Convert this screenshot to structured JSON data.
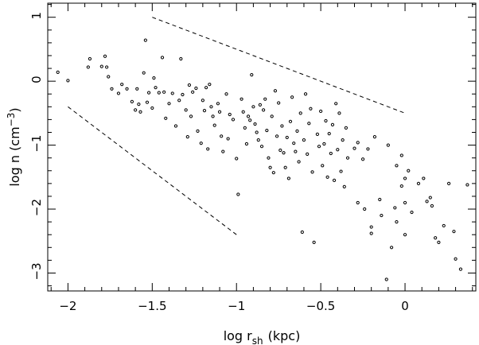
{
  "chart_data": {
    "type": "scatter",
    "xlabel_main": "log r",
    "xlabel_sub": "sh",
    "xlabel_unit": "(kpc)",
    "ylabel_main": "log n (cm",
    "ylabel_sup": "−3",
    "ylabel_close": ")",
    "xlim": [
      -2.12,
      0.42
    ],
    "ylim": [
      -3.28,
      1.22
    ],
    "xticks": [
      -2,
      -1.5,
      -1,
      -0.5,
      0
    ],
    "xtick_labels": [
      "−2",
      "−1.5",
      "−1",
      "−0.5",
      "0"
    ],
    "yticks": [
      -3,
      -2,
      -1,
      0,
      1
    ],
    "ytick_labels": [
      "−3",
      "−2",
      "−1",
      "0",
      "1"
    ],
    "guides": [
      {
        "x": [
          -1.5,
          0
        ],
        "y": [
          1.0,
          -0.5
        ]
      },
      {
        "x": [
          -2,
          -1
        ],
        "y": [
          -0.4,
          -2.4
        ]
      }
    ],
    "points": [
      [
        -2.06,
        0.14
      ],
      [
        -2.0,
        0.01
      ],
      [
        -1.88,
        0.22
      ],
      [
        -1.87,
        0.35
      ],
      [
        -1.8,
        0.23
      ],
      [
        -1.78,
        0.39
      ],
      [
        -1.77,
        0.22
      ],
      [
        -1.76,
        0.07
      ],
      [
        -1.74,
        -0.12
      ],
      [
        -1.7,
        -0.19
      ],
      [
        -1.68,
        -0.05
      ],
      [
        -1.65,
        -0.12
      ],
      [
        -1.62,
        -0.32
      ],
      [
        -1.6,
        -0.45
      ],
      [
        -1.59,
        -0.12
      ],
      [
        -1.58,
        -0.36
      ],
      [
        -1.57,
        -0.48
      ],
      [
        -1.55,
        0.13
      ],
      [
        -1.54,
        0.64
      ],
      [
        -1.53,
        -0.33
      ],
      [
        -1.52,
        -0.18
      ],
      [
        -1.5,
        -0.42
      ],
      [
        -1.49,
        0.05
      ],
      [
        -1.48,
        -0.1
      ],
      [
        -1.46,
        -0.18
      ],
      [
        -1.44,
        0.37
      ],
      [
        -1.43,
        -0.17
      ],
      [
        -1.42,
        -0.58
      ],
      [
        -1.4,
        -0.35
      ],
      [
        -1.38,
        -0.19
      ],
      [
        -1.36,
        -0.7
      ],
      [
        -1.34,
        -0.3
      ],
      [
        -1.33,
        0.35
      ],
      [
        -1.32,
        -0.21
      ],
      [
        -1.3,
        -0.45
      ],
      [
        -1.29,
        -0.87
      ],
      [
        -1.28,
        -0.06
      ],
      [
        -1.27,
        -0.55
      ],
      [
        -1.26,
        -0.17
      ],
      [
        -1.24,
        -0.11
      ],
      [
        -1.23,
        -0.78
      ],
      [
        -1.21,
        -0.97
      ],
      [
        -1.2,
        -0.3
      ],
      [
        -1.19,
        -0.46
      ],
      [
        -1.18,
        -0.1
      ],
      [
        -1.17,
        -1.06
      ],
      [
        -1.16,
        -0.05
      ],
      [
        -1.15,
        -0.4
      ],
      [
        -1.14,
        -0.55
      ],
      [
        -1.13,
        -0.69
      ],
      [
        -1.11,
        -0.35
      ],
      [
        -1.1,
        -0.48
      ],
      [
        -1.09,
        -0.86
      ],
      [
        -1.08,
        -1.1
      ],
      [
        -1.06,
        -0.2
      ],
      [
        -1.05,
        -0.9
      ],
      [
        -1.04,
        -0.52
      ],
      [
        -1.02,
        -0.6
      ],
      [
        -1.0,
        -1.21
      ],
      [
        -0.99,
        -1.77
      ],
      [
        -0.97,
        -0.28
      ],
      [
        -0.96,
        -0.48
      ],
      [
        -0.95,
        -0.73
      ],
      [
        -0.94,
        -0.98
      ],
      [
        -0.93,
        -0.55
      ],
      [
        -0.92,
        -0.61
      ],
      [
        -0.91,
        0.1
      ],
      [
        -0.9,
        -0.4
      ],
      [
        -0.89,
        -0.67
      ],
      [
        -0.88,
        -0.8
      ],
      [
        -0.87,
        -0.92
      ],
      [
        -0.86,
        -0.37
      ],
      [
        -0.85,
        -1.02
      ],
      [
        -0.84,
        -0.45
      ],
      [
        -0.83,
        -0.28
      ],
      [
        -0.82,
        -0.77
      ],
      [
        -0.81,
        -1.2
      ],
      [
        -0.8,
        -1.35
      ],
      [
        -0.79,
        -0.55
      ],
      [
        -0.78,
        -1.43
      ],
      [
        -0.77,
        -0.15
      ],
      [
        -0.76,
        -0.86
      ],
      [
        -0.75,
        -0.34
      ],
      [
        -0.74,
        -1.08
      ],
      [
        -0.73,
        -0.7
      ],
      [
        -0.72,
        -1.12
      ],
      [
        -0.71,
        -1.35
      ],
      [
        -0.7,
        -0.88
      ],
      [
        -0.69,
        -1.52
      ],
      [
        -0.68,
        -0.63
      ],
      [
        -0.67,
        -0.25
      ],
      [
        -0.66,
        -0.97
      ],
      [
        -0.65,
        -1.1
      ],
      [
        -0.64,
        -0.78
      ],
      [
        -0.63,
        -1.26
      ],
      [
        -0.62,
        -0.5
      ],
      [
        -0.61,
        -2.36
      ],
      [
        -0.6,
        -0.92
      ],
      [
        -0.59,
        -0.2
      ],
      [
        -0.58,
        -1.14
      ],
      [
        -0.57,
        -0.66
      ],
      [
        -0.56,
        -0.43
      ],
      [
        -0.55,
        -1.42
      ],
      [
        -0.54,
        -2.52
      ],
      [
        -0.52,
        -0.83
      ],
      [
        -0.51,
        -1.02
      ],
      [
        -0.5,
        -0.47
      ],
      [
        -0.49,
        -1.32
      ],
      [
        -0.48,
        -0.98
      ],
      [
        -0.47,
        -0.62
      ],
      [
        -0.46,
        -1.5
      ],
      [
        -0.45,
        -0.82
      ],
      [
        -0.44,
        -1.13
      ],
      [
        -0.43,
        -0.68
      ],
      [
        -0.42,
        -1.55
      ],
      [
        -0.41,
        -0.35
      ],
      [
        -0.4,
        -1.07
      ],
      [
        -0.39,
        -0.5
      ],
      [
        -0.38,
        -1.41
      ],
      [
        -0.37,
        -0.92
      ],
      [
        -0.36,
        -1.65
      ],
      [
        -0.35,
        -0.73
      ],
      [
        -0.34,
        -1.2
      ],
      [
        -0.3,
        -1.05
      ],
      [
        -0.28,
        -0.96
      ],
      [
        -0.25,
        -1.22
      ],
      [
        -0.22,
        -1.06
      ],
      [
        -0.2,
        -2.38
      ],
      [
        -0.18,
        -0.87
      ],
      [
        -0.14,
        -2.1
      ],
      [
        -0.1,
        -1.0
      ],
      [
        -0.05,
        -1.32
      ],
      [
        -0.02,
        -1.16
      ],
      [
        0.0,
        -1.52
      ],
      [
        0.02,
        -1.4
      ],
      [
        -0.28,
        -1.9
      ],
      [
        -0.24,
        -2.0
      ],
      [
        -0.2,
        -2.28
      ],
      [
        -0.15,
        -1.85
      ],
      [
        -0.11,
        -3.1
      ],
      [
        -0.08,
        -2.6
      ],
      [
        -0.05,
        -2.2
      ],
      [
        0.0,
        -1.9
      ],
      [
        0.04,
        -2.05
      ],
      [
        0.08,
        -1.6
      ],
      [
        0.11,
        -1.52
      ],
      [
        0.13,
        -1.88
      ],
      [
        0.16,
        -1.95
      ],
      [
        0.18,
        -2.45
      ],
      [
        0.2,
        -2.52
      ],
      [
        0.23,
        -2.26
      ],
      [
        0.26,
        -1.6
      ],
      [
        0.29,
        -2.35
      ],
      [
        0.33,
        -2.94
      ],
      [
        0.37,
        -1.62
      ],
      [
        0.0,
        -2.4
      ],
      [
        -0.02,
        -1.64
      ],
      [
        -0.06,
        -1.98
      ],
      [
        0.15,
        -1.82
      ],
      [
        0.3,
        -2.78
      ]
    ]
  }
}
